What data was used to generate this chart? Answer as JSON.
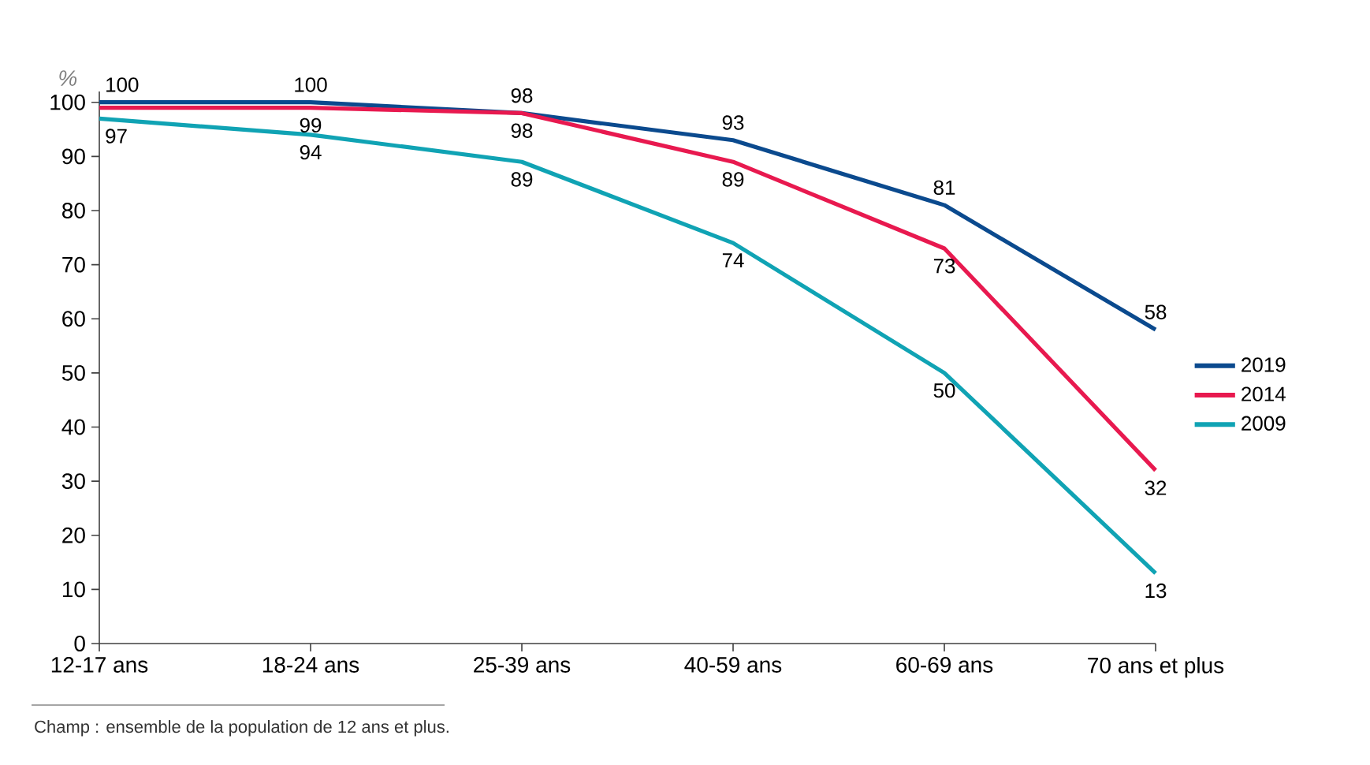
{
  "chart_data": {
    "type": "line",
    "ylabel": "%",
    "categories": [
      "12-17 ans",
      "18-24 ans",
      "25-39 ans",
      "40-59 ans",
      "60-69 ans",
      "70 ans et plus"
    ],
    "series": [
      {
        "name": "2019",
        "color": "#0b4a8e",
        "values": [
          100,
          100,
          98,
          93,
          81,
          58
        ],
        "value_labels": [
          "100",
          "100",
          "98",
          "93",
          "81",
          "58"
        ]
      },
      {
        "name": "2014",
        "color": "#e8194f",
        "values": [
          99,
          99,
          98,
          89,
          73,
          32
        ],
        "value_labels": [
          null,
          "99",
          "98",
          "89",
          "73",
          "32"
        ]
      },
      {
        "name": "2009",
        "color": "#10a3b4",
        "values": [
          97,
          94,
          89,
          74,
          50,
          13
        ],
        "value_labels": [
          "97",
          "94",
          "89",
          "74",
          "50",
          "13"
        ]
      }
    ],
    "ylim": [
      0,
      102
    ],
    "yticks": [
      0,
      10,
      20,
      30,
      40,
      50,
      60,
      70,
      80,
      90,
      100
    ],
    "legend": "right",
    "marker": "none",
    "line_style": "solid",
    "annotations": [
      "Champ : ensemble de la population de 12 ans et plus."
    ]
  }
}
